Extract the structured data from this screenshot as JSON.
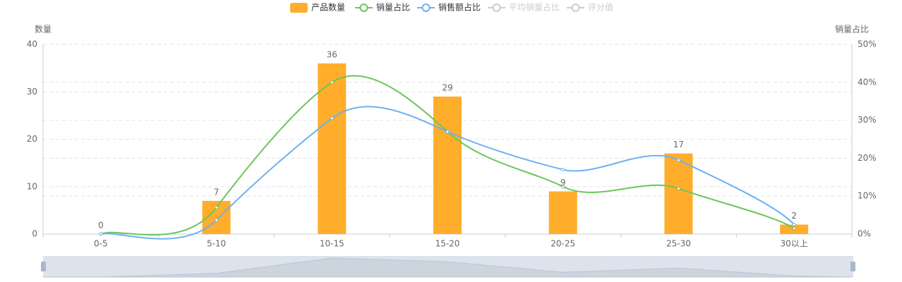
{
  "chart_data": {
    "type": "bar-line",
    "categories": [
      "0-5",
      "5-10",
      "10-15",
      "15-20",
      "20-25",
      "25-30",
      "30以上"
    ],
    "series": [
      {
        "name": "产品数量",
        "type": "bar",
        "color": "#ffad2b",
        "values": [
          0,
          7,
          36,
          29,
          9,
          17,
          2
        ]
      },
      {
        "name": "销量占比",
        "type": "line",
        "axis": "y2",
        "color": "#6cc65a",
        "values": [
          0,
          7,
          40,
          27,
          12.5,
          12,
          1.5
        ]
      },
      {
        "name": "销售额占比",
        "type": "line",
        "axis": "y2",
        "color": "#6cb2f2",
        "values": [
          0,
          3.7,
          30.5,
          27,
          17,
          19.5,
          2.5
        ]
      },
      {
        "name": "平均销量占比",
        "type": "line",
        "axis": "y2",
        "color": "#cccccc",
        "hidden": true
      },
      {
        "name": "评分值",
        "type": "line",
        "axis": "y2",
        "color": "#cccccc",
        "hidden": true
      }
    ],
    "ylabel": "数量",
    "y2label": "销量占比",
    "ylim": [
      0,
      40
    ],
    "yticks": [
      0,
      10,
      20,
      30,
      40
    ],
    "y2lim": [
      0,
      50
    ],
    "y2ticks": [
      {
        "value": 0,
        "label": "0%"
      },
      {
        "value": 10,
        "label": "10%"
      },
      {
        "value": 20,
        "label": "20%"
      },
      {
        "value": 30,
        "label": "30%"
      },
      {
        "value": 40,
        "label": "40%"
      },
      {
        "value": 50,
        "label": "50%"
      }
    ],
    "grid": true,
    "smooth": true,
    "legend": "top"
  }
}
